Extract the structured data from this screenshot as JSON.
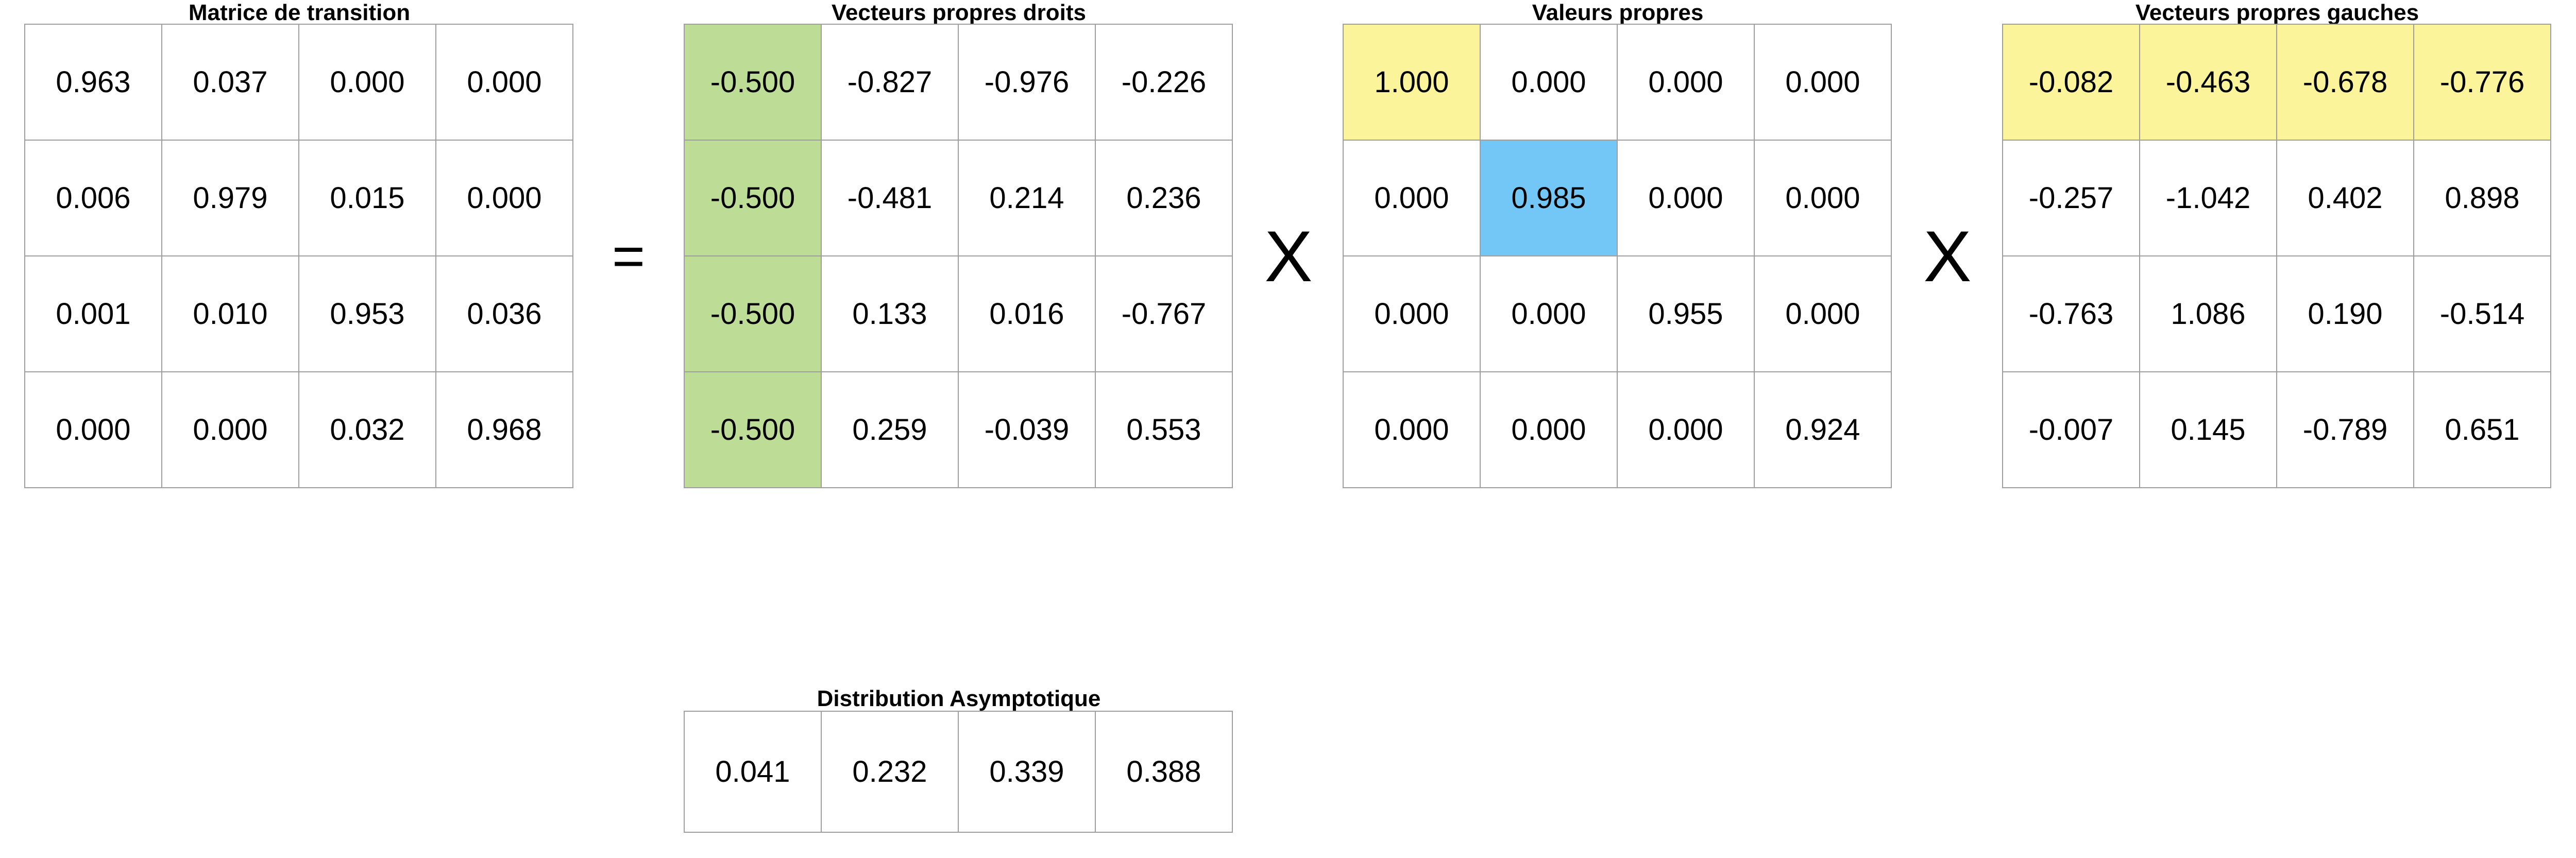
{
  "transition": {
    "title": "Matrice de transition",
    "rows": [
      [
        "0.963",
        "0.037",
        "0.000",
        "0.000"
      ],
      [
        "0.006",
        "0.979",
        "0.015",
        "0.000"
      ],
      [
        "0.001",
        "0.010",
        "0.953",
        "0.036"
      ],
      [
        "0.000",
        "0.000",
        "0.032",
        "0.968"
      ]
    ]
  },
  "operators": {
    "equals": "=",
    "times_1": "X",
    "times_2": "X"
  },
  "right_eigenvectors": {
    "title": "Vecteurs propres droits",
    "highlight_color": "#bddd97",
    "rows": [
      [
        "-0.500",
        "-0.827",
        "-0.976",
        "-0.226"
      ],
      [
        "-0.500",
        "-0.481",
        "0.214",
        "0.236"
      ],
      [
        "-0.500",
        "0.133",
        "0.016",
        "-0.767"
      ],
      [
        "-0.500",
        "0.259",
        "-0.039",
        "0.553"
      ]
    ]
  },
  "eigenvalues": {
    "title": "Valeurs propres",
    "highlight_color_primary": "#fbf49a",
    "highlight_color_secondary": "#73c7f7",
    "rows": [
      [
        "1.000",
        "0.000",
        "0.000",
        "0.000"
      ],
      [
        "0.000",
        "0.985",
        "0.000",
        "0.000"
      ],
      [
        "0.000",
        "0.000",
        "0.955",
        "0.000"
      ],
      [
        "0.000",
        "0.000",
        "0.000",
        "0.924"
      ]
    ]
  },
  "left_eigenvectors": {
    "title": "Vecteurs propres gauches",
    "highlight_color": "#fbf49a",
    "rows": [
      [
        "-0.082",
        "-0.463",
        "-0.678",
        "-0.776"
      ],
      [
        "-0.257",
        "-1.042",
        "0.402",
        "0.898"
      ],
      [
        "-0.763",
        "1.086",
        "0.190",
        "-0.514"
      ],
      [
        "-0.007",
        "0.145",
        "-0.789",
        "0.651"
      ]
    ]
  },
  "asymptotic": {
    "title": "Distribution Asymptotique",
    "values": [
      "0.041",
      "0.232",
      "0.339",
      "0.388"
    ]
  }
}
